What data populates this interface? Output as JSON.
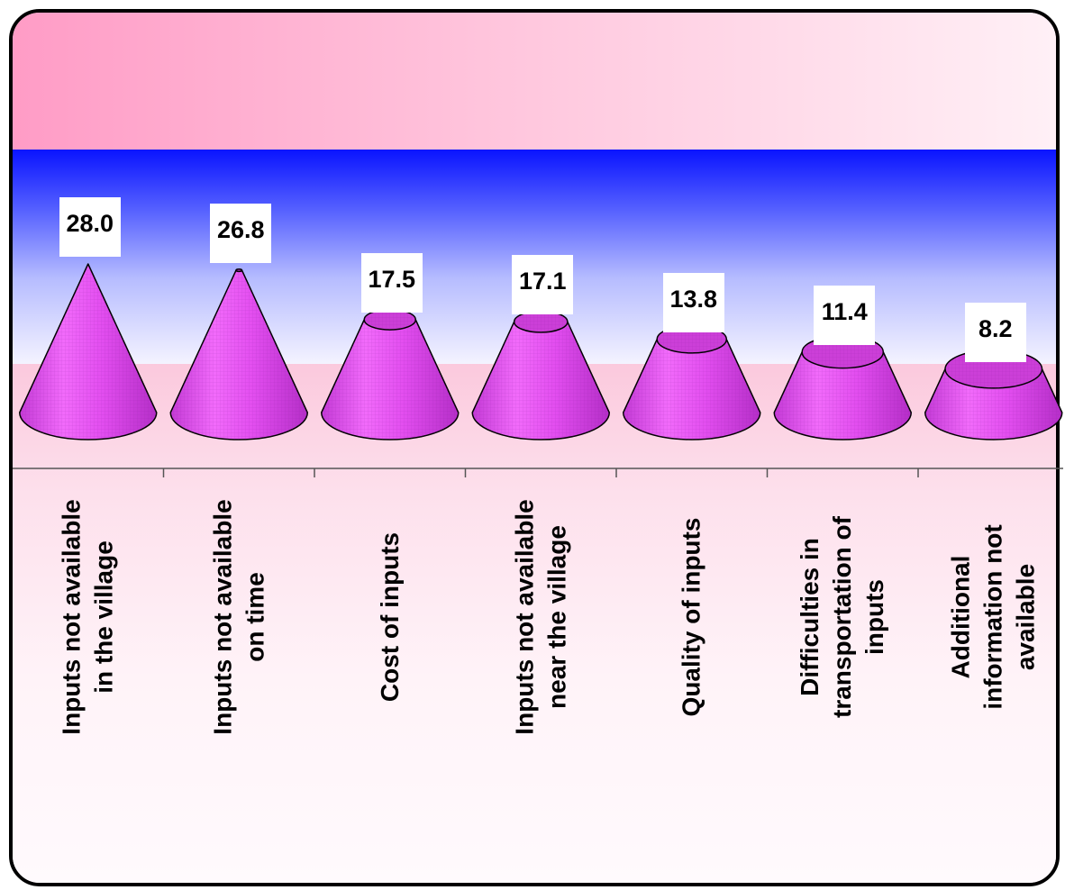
{
  "chart_data": {
    "type": "bar",
    "style": "3d-cone",
    "title": "",
    "xlabel": "",
    "ylabel": "",
    "categories": [
      "Inputs not available\nin the village",
      "Inputs not available\non time",
      "Cost of inputs",
      "Inputs not available\nnear the village",
      "Quality of inputs",
      "Difficulties in\ntransportation of\ninputs",
      "Additional\ninformation not\navailable"
    ],
    "values": [
      28.0,
      26.8,
      17.5,
      17.1,
      13.8,
      11.4,
      8.2
    ],
    "value_labels": [
      "28.0",
      "26.8",
      "17.5",
      "17.1",
      "13.8",
      "11.4",
      "8.2"
    ],
    "ylim": [
      0,
      28.0
    ],
    "grid": false,
    "legend": false,
    "colors": {
      "cone_fill": "#e34ef0",
      "cone_top": "#cc3fd8",
      "outline": "#000000",
      "band_blue": "#0a14ff",
      "band_pink": "#ff9cc6"
    }
  }
}
